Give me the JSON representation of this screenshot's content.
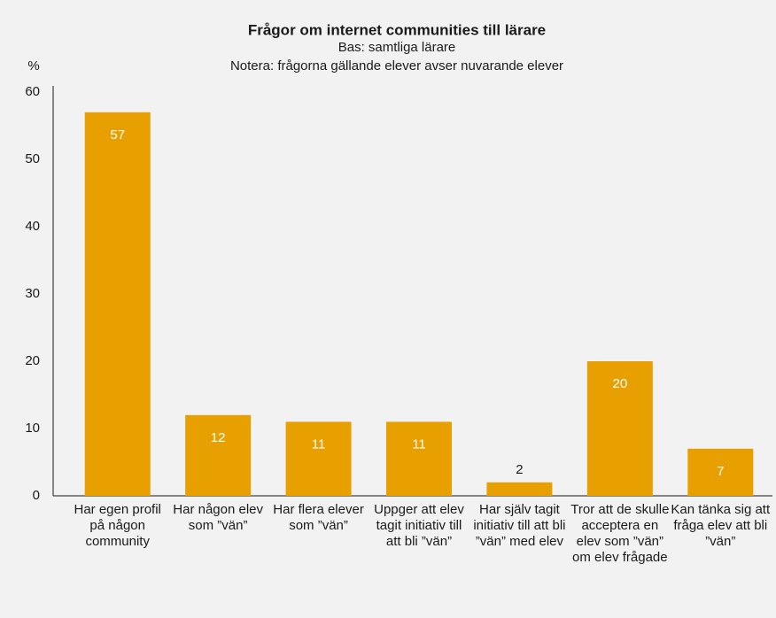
{
  "chart_data": {
    "type": "bar",
    "title": "Frågor om internet communities till lärare",
    "subtitle": "Bas: samtliga lärare",
    "note": "Notera: frågorna gällande elever avser nuvarande elever",
    "y_label": "%",
    "categories": [
      "Har egen profil på någon community",
      "Har någon elev som ”vän”",
      "Har flera elever som ”vän”",
      "Uppger att elev tagit initiativ till att bli ”vän”",
      "Har själv tagit initiativ till att bli ”vän” med elev",
      "Tror att de skulle acceptera en elev som ”vän” om elev frågade",
      "Kan tänka sig att fråga elev att bli ”vän”"
    ],
    "values": [
      57,
      12,
      11,
      11,
      2,
      20,
      7
    ],
    "color": "#e8a000",
    "ylim": [
      0,
      60
    ],
    "yticks": [
      0,
      10,
      20,
      30,
      40,
      50,
      60
    ],
    "grid": false
  }
}
